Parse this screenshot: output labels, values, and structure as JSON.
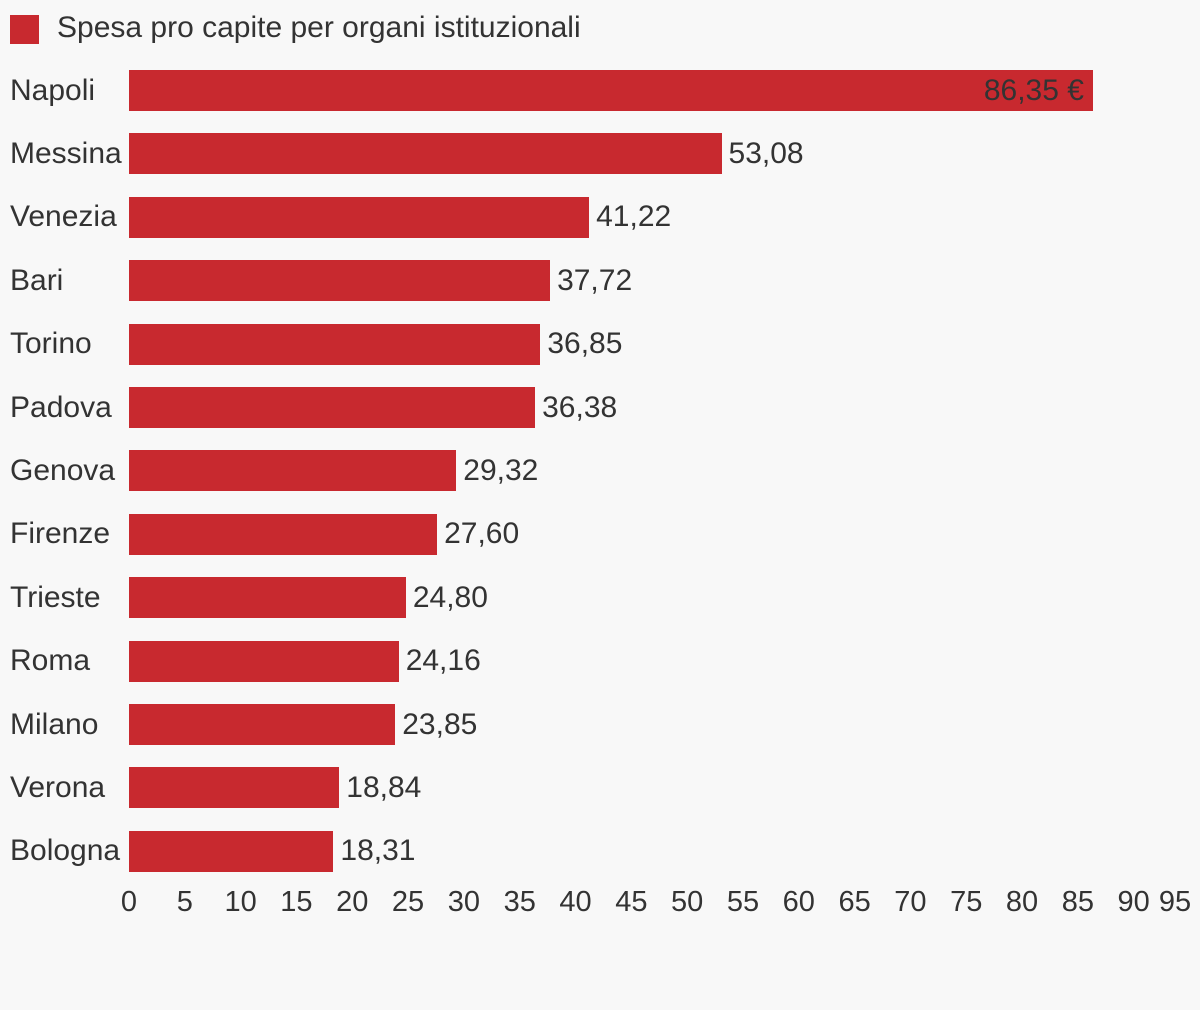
{
  "style": {
    "background_color": "#f8f8f8",
    "bar_color": "#c8292f",
    "text_color": "#333333"
  },
  "legend": {
    "label": "Spesa pro capite per organi istituzionali",
    "swatch_color": "#c8292f"
  },
  "chart_data": {
    "type": "bar",
    "orientation": "horizontal",
    "title": "Spesa pro capite per organi istituzionali",
    "xlabel": "",
    "ylabel": "",
    "categories": [
      "Napoli",
      "Messina",
      "Venezia",
      "Bari",
      "Torino",
      "Padova",
      "Genova",
      "Firenze",
      "Trieste",
      "Roma",
      "Milano",
      "Verona",
      "Bologna"
    ],
    "values": [
      86.35,
      53.08,
      41.22,
      37.72,
      36.85,
      36.38,
      29.32,
      27.6,
      24.8,
      24.16,
      23.85,
      18.84,
      18.31
    ],
    "value_labels": [
      "86,35 €",
      "53,08",
      "41,22",
      "37,72",
      "36,85",
      "36,38",
      "29,32",
      "27,60",
      "24,80",
      "24,16",
      "23,85",
      "18,84",
      "18,31"
    ],
    "unit_suffix": "€",
    "inside_label_indices": [
      0
    ],
    "xlim": [
      0,
      95
    ],
    "x_ticks": [
      0,
      5,
      10,
      15,
      20,
      25,
      30,
      35,
      40,
      45,
      50,
      55,
      60,
      65,
      70,
      75,
      80,
      85,
      90,
      95
    ],
    "grid": false,
    "legend_position": "top-left",
    "series_color": "#c8292f"
  }
}
